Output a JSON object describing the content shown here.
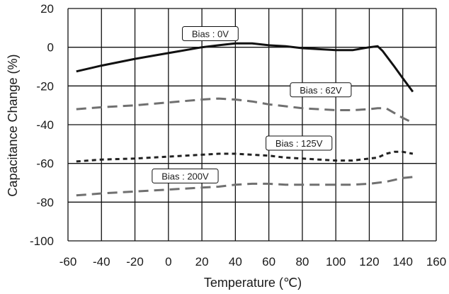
{
  "chart_data": {
    "type": "line",
    "xlabel": "Temperature (℃)",
    "ylabel": "Capacitance Change (%)",
    "xlim": [
      -60,
      160
    ],
    "ylim": [
      -100,
      20
    ],
    "xticks": [
      -60,
      -40,
      -20,
      0,
      20,
      40,
      60,
      80,
      100,
      120,
      140,
      160
    ],
    "yticks": [
      20,
      0,
      -20,
      -40,
      -60,
      -80,
      -100
    ],
    "xtick_labels": [
      "-60",
      "-40",
      "-20",
      "0",
      "20",
      "40",
      "60",
      "80",
      "100",
      "120",
      "140",
      "160"
    ],
    "ytick_labels": [
      "20",
      "0",
      "-20",
      "-40",
      "-60",
      "-80",
      "-100"
    ],
    "grid": true,
    "series": [
      {
        "name": "Bias : 0V",
        "color": "#111111",
        "style": "solid",
        "x": [
          -55,
          -40,
          -20,
          0,
          20,
          30,
          40,
          50,
          60,
          70,
          80,
          90,
          100,
          110,
          120,
          125,
          128,
          135,
          140,
          146
        ],
        "y": [
          -12.5,
          -9.5,
          -6,
          -3,
          0,
          1,
          2,
          2,
          1,
          0.5,
          -0.5,
          -1,
          -1.5,
          -1.5,
          0,
          0.5,
          -2,
          -10,
          -16,
          -23
        ]
      },
      {
        "name": "Bias : 62V",
        "color": "#707070",
        "style": "long-dash",
        "x": [
          -55,
          -40,
          -20,
          0,
          20,
          30,
          40,
          50,
          60,
          70,
          80,
          90,
          100,
          110,
          120,
          125,
          130,
          135,
          140,
          146
        ],
        "y": [
          -32,
          -31,
          -30,
          -28.5,
          -27,
          -26.5,
          -27,
          -28,
          -29.5,
          -30.5,
          -31.5,
          -32,
          -32.5,
          -32.5,
          -32,
          -31.5,
          -31.5,
          -34,
          -36.5,
          -39
        ]
      },
      {
        "name": "Bias : 125V",
        "color": "#222222",
        "style": "short-dash",
        "x": [
          -55,
          -40,
          -20,
          0,
          20,
          30,
          40,
          50,
          60,
          70,
          80,
          90,
          100,
          110,
          120,
          125,
          130,
          135,
          140,
          146
        ],
        "y": [
          -59,
          -58,
          -57.5,
          -56.5,
          -55.5,
          -55,
          -55,
          -55.5,
          -56,
          -57,
          -57.5,
          -58,
          -58.5,
          -58.5,
          -57.5,
          -57,
          -55,
          -54,
          -54,
          -55
        ]
      },
      {
        "name": "Bias : 200V",
        "color": "#707070",
        "style": "long-dash",
        "x": [
          -55,
          -40,
          -20,
          0,
          20,
          30,
          40,
          50,
          60,
          70,
          80,
          90,
          100,
          110,
          120,
          125,
          130,
          135,
          140,
          146
        ],
        "y": [
          -76.5,
          -75.5,
          -74.5,
          -73.5,
          -72.5,
          -72,
          -71,
          -70.5,
          -70.5,
          -71,
          -71,
          -71,
          -71,
          -71,
          -70.5,
          -70,
          -69.5,
          -68.5,
          -67.5,
          -67
        ]
      }
    ],
    "annotations": [
      {
        "text": "Bias : 0V",
        "x": 25,
        "y": 7
      },
      {
        "text": "Bias : 62V",
        "x": 91,
        "y": -22
      },
      {
        "text": "Bias : 125V",
        "x": 78,
        "y": -49.5
      },
      {
        "text": "Bias : 200V",
        "x": 10,
        "y": -66.5
      }
    ]
  }
}
